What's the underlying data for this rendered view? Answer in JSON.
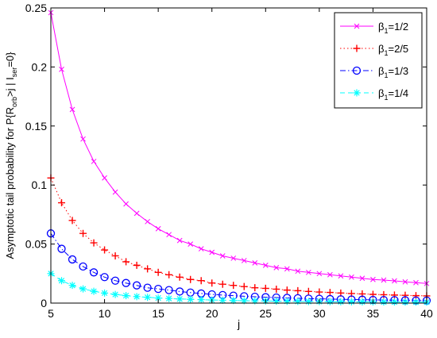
{
  "chart_data": {
    "type": "line",
    "title": "",
    "xlabel": "j",
    "ylabel": {
      "pre": "Asymptotic tail probability for P{R",
      "sub1": "orb",
      "mid": ">j | I",
      "sub2": "ser",
      "post": "=0}"
    },
    "xlim": [
      5,
      40
    ],
    "ylim": [
      0,
      0.25
    ],
    "xticks": [
      "5",
      "10",
      "15",
      "20",
      "25",
      "30",
      "35",
      "40"
    ],
    "yticks": [
      "0",
      "0.05",
      "0.1",
      "0.15",
      "0.2",
      "0.25"
    ],
    "grid": false,
    "legend_position": "top-right",
    "x": [
      5,
      6,
      7,
      8,
      9,
      10,
      11,
      12,
      13,
      14,
      15,
      16,
      17,
      18,
      19,
      20,
      21,
      22,
      23,
      24,
      25,
      26,
      27,
      28,
      29,
      30,
      31,
      32,
      33,
      34,
      35,
      36,
      37,
      38,
      39,
      40
    ],
    "series": [
      {
        "name": "β1=1/2",
        "beta": "β",
        "sub": "1",
        "val": "=1/2",
        "color": "#ff00ff",
        "marker": "x",
        "line": "solid",
        "values": [
          0.246,
          0.198,
          0.164,
          0.139,
          0.12,
          0.106,
          0.094,
          0.084,
          0.076,
          0.069,
          0.063,
          0.058,
          0.053,
          0.05,
          0.046,
          0.043,
          0.04,
          0.038,
          0.036,
          0.034,
          0.032,
          0.03,
          0.029,
          0.027,
          0.026,
          0.025,
          0.024,
          0.023,
          0.022,
          0.021,
          0.02,
          0.0195,
          0.0188,
          0.018,
          0.0173,
          0.0166
        ]
      },
      {
        "name": "β1=2/5",
        "beta": "β",
        "sub": "1",
        "val": "=2/5",
        "color": "#ff0000",
        "marker": "+",
        "line": "dotted",
        "values": [
          0.106,
          0.085,
          0.07,
          0.059,
          0.051,
          0.045,
          0.04,
          0.035,
          0.032,
          0.029,
          0.026,
          0.024,
          0.022,
          0.02,
          0.019,
          0.017,
          0.016,
          0.015,
          0.014,
          0.013,
          0.0125,
          0.0118,
          0.011,
          0.0105,
          0.0099,
          0.0094,
          0.009,
          0.0085,
          0.0081,
          0.0078,
          0.0074,
          0.0071,
          0.0068,
          0.0066,
          0.0063,
          0.0061
        ]
      },
      {
        "name": "β1=1/3",
        "beta": "β",
        "sub": "1",
        "val": "=1/3",
        "color": "#0000ff",
        "marker": "o",
        "line": "dashdot",
        "values": [
          0.059,
          0.046,
          0.037,
          0.031,
          0.026,
          0.022,
          0.019,
          0.017,
          0.015,
          0.013,
          0.012,
          0.011,
          0.0098,
          0.0089,
          0.0081,
          0.0074,
          0.0068,
          0.0063,
          0.0058,
          0.0054,
          0.005,
          0.0047,
          0.0044,
          0.0041,
          0.0038,
          0.0036,
          0.0034,
          0.0032,
          0.003,
          0.0029,
          0.0027,
          0.0026,
          0.0025,
          0.0024,
          0.0022,
          0.0021
        ]
      },
      {
        "name": "β1=1/4",
        "beta": "β",
        "sub": "1",
        "val": "=1/4",
        "color": "#00ffff",
        "marker": "*",
        "line": "dashed",
        "values": [
          0.025,
          0.019,
          0.015,
          0.012,
          0.01,
          0.0085,
          0.0073,
          0.0063,
          0.0055,
          0.0049,
          0.0043,
          0.0039,
          0.0035,
          0.0032,
          0.0029,
          0.0026,
          0.0024,
          0.0022,
          0.002,
          0.0019,
          0.0018,
          0.0016,
          0.0015,
          0.0014,
          0.0013,
          0.0013,
          0.0012,
          0.0011,
          0.0011,
          0.001,
          0.001,
          0.0009,
          0.0009,
          0.0008,
          0.0008,
          0.0008
        ]
      }
    ]
  }
}
